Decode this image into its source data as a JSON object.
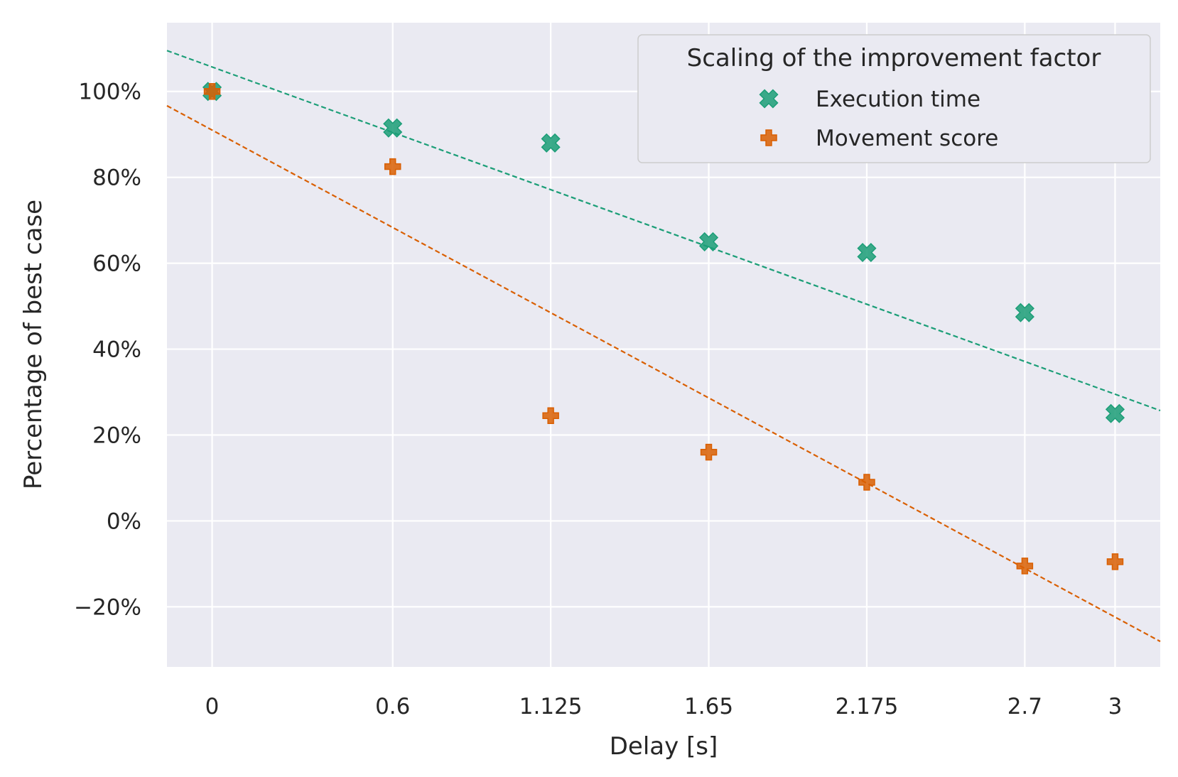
{
  "chart_data": {
    "type": "scatter",
    "xlabel": "Delay [s]",
    "ylabel": "Percentage of best case",
    "x_ticks": [
      0,
      0.6,
      1.125,
      1.65,
      2.175,
      2.7,
      3
    ],
    "x_tick_labels": [
      "0",
      "0.6",
      "1.125",
      "1.65",
      "2.175",
      "2.7",
      "3"
    ],
    "xlim": [
      -0.15,
      3.15
    ],
    "y_ticks": [
      -20,
      0,
      20,
      40,
      60,
      80,
      100
    ],
    "y_tick_labels": [
      "−20%",
      "0%",
      "20%",
      "40%",
      "60%",
      "80%",
      "100%"
    ],
    "ylim": [
      -34,
      116
    ],
    "grid": true,
    "background": "#eaeaf2",
    "legend": {
      "title": "Scaling of the improvement factor",
      "position": "top-right"
    },
    "series": [
      {
        "name": "Execution time",
        "marker": "X",
        "color": "#1b9e77",
        "x": [
          0,
          0.6,
          1.125,
          1.65,
          2.175,
          2.7,
          3
        ],
        "y": [
          100,
          91.5,
          88,
          65,
          62.5,
          48.5,
          25
        ],
        "trend": {
          "slope": -25.4,
          "intercept": 105.7
        }
      },
      {
        "name": "Movement score",
        "marker": "P",
        "color": "#d95f02",
        "x": [
          0,
          0.6,
          1.125,
          1.65,
          2.175,
          2.7,
          3
        ],
        "y": [
          100,
          82.5,
          24.5,
          16,
          9,
          -10.5,
          -9.5
        ],
        "trend": {
          "slope": -37.8,
          "intercept": 91
        }
      }
    ]
  }
}
